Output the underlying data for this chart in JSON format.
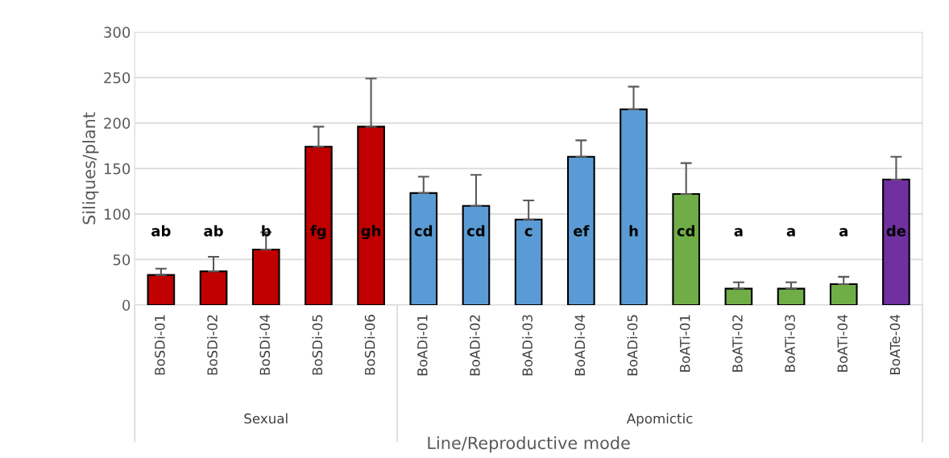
{
  "chart_data": {
    "type": "bar",
    "xlabel": "Line/Reproductive mode",
    "ylabel": "Siliques/plant",
    "categories": [
      "BoSDi-01",
      "BoSDi-02",
      "BoSDi-04",
      "BoSDi-05",
      "BoSDi-06",
      "BoADi-01",
      "BoADi-02",
      "BoADi-03",
      "BoADi-04",
      "BoADi-05",
      "BoATi-01",
      "BoATi-02",
      "BoATi-03",
      "BoATi-04",
      "BoATe-04"
    ],
    "values": [
      33,
      37,
      61,
      174,
      196,
      123,
      109,
      94,
      163,
      215,
      122,
      18,
      18,
      23,
      138
    ],
    "errors": [
      [
        33,
        40
      ],
      [
        37,
        53
      ],
      [
        61,
        80
      ],
      [
        174,
        196
      ],
      [
        196,
        249
      ],
      [
        123,
        141
      ],
      [
        109,
        143
      ],
      [
        94,
        115
      ],
      [
        163,
        181
      ],
      [
        215,
        240
      ],
      [
        122,
        156
      ],
      [
        18,
        25
      ],
      [
        18,
        25
      ],
      [
        23,
        31
      ],
      [
        138,
        163
      ]
    ],
    "colors": [
      "#c00000",
      "#c00000",
      "#c00000",
      "#c00000",
      "#c00000",
      "#5b9bd5",
      "#5b9bd5",
      "#5b9bd5",
      "#5b9bd5",
      "#5b9bd5",
      "#70ad47",
      "#70ad47",
      "#70ad47",
      "#70ad47",
      "#7030a0"
    ],
    "ylim": [
      0,
      300
    ],
    "yticks": [
      0,
      50,
      100,
      150,
      200,
      250,
      300
    ],
    "grid": "y",
    "annotations": [
      "ab",
      "ab",
      "b",
      "fg",
      "gh",
      "cd",
      "cd",
      "c",
      "ef",
      "h",
      "cd",
      "a",
      "a",
      "a",
      "de",
      "Sexual",
      "Apomictic"
    ]
  }
}
